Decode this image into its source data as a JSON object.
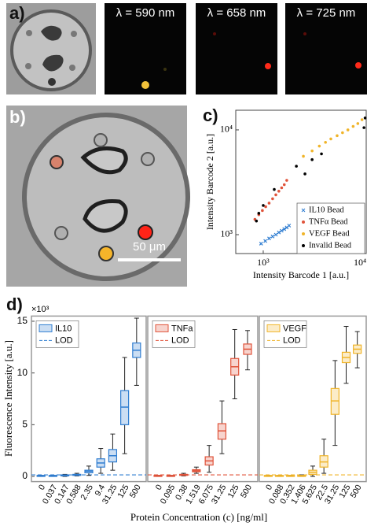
{
  "figure": {
    "panel_a": "a)",
    "lambda_labels": [
      "λ = 590 nm",
      "λ = 658 nm",
      "λ = 725 nm"
    ],
    "panel_b": "b)",
    "scale_bar": "50 μm"
  },
  "chart_data": [
    {
      "type": "scatter",
      "panel_label": "c)",
      "xlabel": "Intensity Barcode 1 [a.u.]",
      "ylabel": "Intensity Barcode 2 [a.u.]",
      "log_x": true,
      "log_y": true,
      "xlim": [
        520,
        11600
      ],
      "ylim": [
        660,
        15400
      ],
      "xticks": [
        {
          "value": 1000,
          "label": "10³"
        },
        {
          "value": 10000,
          "label": "10⁴"
        }
      ],
      "yticks": [
        {
          "value": 1000,
          "label": "10³"
        },
        {
          "value": 10000,
          "label": "10⁴"
        }
      ],
      "legend": "lower right",
      "series": [
        {
          "name": "IL10 Bead",
          "color": "#2f7dd1",
          "marker": "x",
          "x": [
            950,
            1050,
            1150,
            1250,
            1350,
            1450,
            1550,
            1650,
            1750,
            1850
          ],
          "y": [
            820,
            870,
            920,
            960,
            1000,
            1050,
            1090,
            1130,
            1170,
            1220
          ]
        },
        {
          "name": "TNFα Bead",
          "color": "#e0533a",
          "marker": "dot",
          "x": [
            820,
            900,
            980,
            1060,
            1150,
            1250,
            1350,
            1450,
            1550,
            1650,
            1750
          ],
          "y": [
            1400,
            1550,
            1700,
            1850,
            2000,
            2200,
            2400,
            2600,
            2800,
            3000,
            3300
          ]
        },
        {
          "name": "VEGF Bead",
          "color": "#f0b429",
          "marker": "dot",
          "x": [
            2600,
            3200,
            3800,
            4400,
            5000,
            5800,
            6600,
            7500,
            8500,
            9500,
            10500
          ],
          "y": [
            5600,
            6300,
            7000,
            7600,
            8200,
            8800,
            9400,
            10000,
            10800,
            11500,
            12500
          ]
        },
        {
          "name": "Invalid Bead",
          "color": "#000000",
          "marker": "dot",
          "x": [
            850,
            1000,
            2200,
            2700,
            3200,
            4000,
            1300,
            11000,
            11300,
            900
          ],
          "y": [
            1350,
            1900,
            4500,
            3800,
            5200,
            5900,
            2700,
            10500,
            13000,
            1600
          ]
        }
      ]
    },
    {
      "type": "box",
      "panel_label": "d)",
      "ylabel": "Fluorescence Intensity [a.u.]",
      "xlabel": "Protein Concentration (c) [ng/ml]",
      "y_multiplier": "×10³",
      "ylim": [
        -0.5,
        15.5
      ],
      "yticks": [
        0,
        5,
        10,
        15
      ],
      "lod_label": "LOD",
      "series": [
        {
          "name": "IL10",
          "color": "#2f7dd1",
          "lod": 0.15,
          "categories": [
            "0",
            "0.037",
            "0.147",
            "0.588",
            "2.35",
            "9.4",
            "31.25",
            "125",
            "500"
          ],
          "low": [
            0,
            0,
            0,
            0.05,
            0.1,
            0.3,
            0.6,
            2.2,
            8.8
          ],
          "q1": [
            0,
            0,
            0.05,
            0.1,
            0.35,
            0.9,
            1.4,
            5.0,
            11.5
          ],
          "median": [
            0.05,
            0.05,
            0.1,
            0.15,
            0.5,
            1.3,
            2.0,
            6.7,
            12.2
          ],
          "q3": [
            0.1,
            0.1,
            0.15,
            0.2,
            0.6,
            1.7,
            2.6,
            8.3,
            12.9
          ],
          "high": [
            0.1,
            0.1,
            0.2,
            0.3,
            1.0,
            2.7,
            4.1,
            11.5,
            15.3
          ]
        },
        {
          "name": "TNFa",
          "color": "#e0533a",
          "lod": 0.15,
          "categories": [
            "0",
            "0.095",
            "0.38",
            "1.519",
            "6.075",
            "31.25",
            "125",
            "500"
          ],
          "low": [
            0,
            0,
            0.05,
            0.3,
            0.4,
            2.2,
            7.5,
            10.3
          ],
          "q1": [
            0,
            0,
            0.1,
            0.45,
            1.1,
            3.6,
            9.8,
            11.8
          ],
          "median": [
            0.05,
            0.05,
            0.15,
            0.55,
            1.5,
            4.4,
            10.6,
            12.3
          ],
          "q3": [
            0.1,
            0.1,
            0.2,
            0.65,
            1.9,
            5.1,
            11.4,
            12.8
          ],
          "high": [
            0.1,
            0.1,
            0.3,
            0.9,
            3.0,
            7.3,
            14.2,
            14.1
          ]
        },
        {
          "name": "VEGF",
          "color": "#f0b429",
          "lod": 0.15,
          "categories": [
            "0",
            "0.088",
            "0.352",
            "1.406",
            "5.625",
            "22.5",
            "31.25",
            "125",
            "500"
          ],
          "low": [
            0,
            0,
            0,
            0,
            0,
            0.3,
            3.0,
            9.0,
            10.5
          ],
          "q1": [
            0,
            0,
            0,
            0,
            0.2,
            0.9,
            6.0,
            11.0,
            11.9
          ],
          "median": [
            0.05,
            0.05,
            0.05,
            0.05,
            0.4,
            1.4,
            7.3,
            11.5,
            12.3
          ],
          "q3": [
            0.1,
            0.1,
            0.1,
            0.1,
            0.6,
            2.0,
            8.5,
            12.0,
            12.7
          ],
          "high": [
            0.1,
            0.1,
            0.1,
            0.15,
            1.0,
            3.6,
            11.2,
            14.5,
            14.0
          ]
        }
      ]
    }
  ]
}
